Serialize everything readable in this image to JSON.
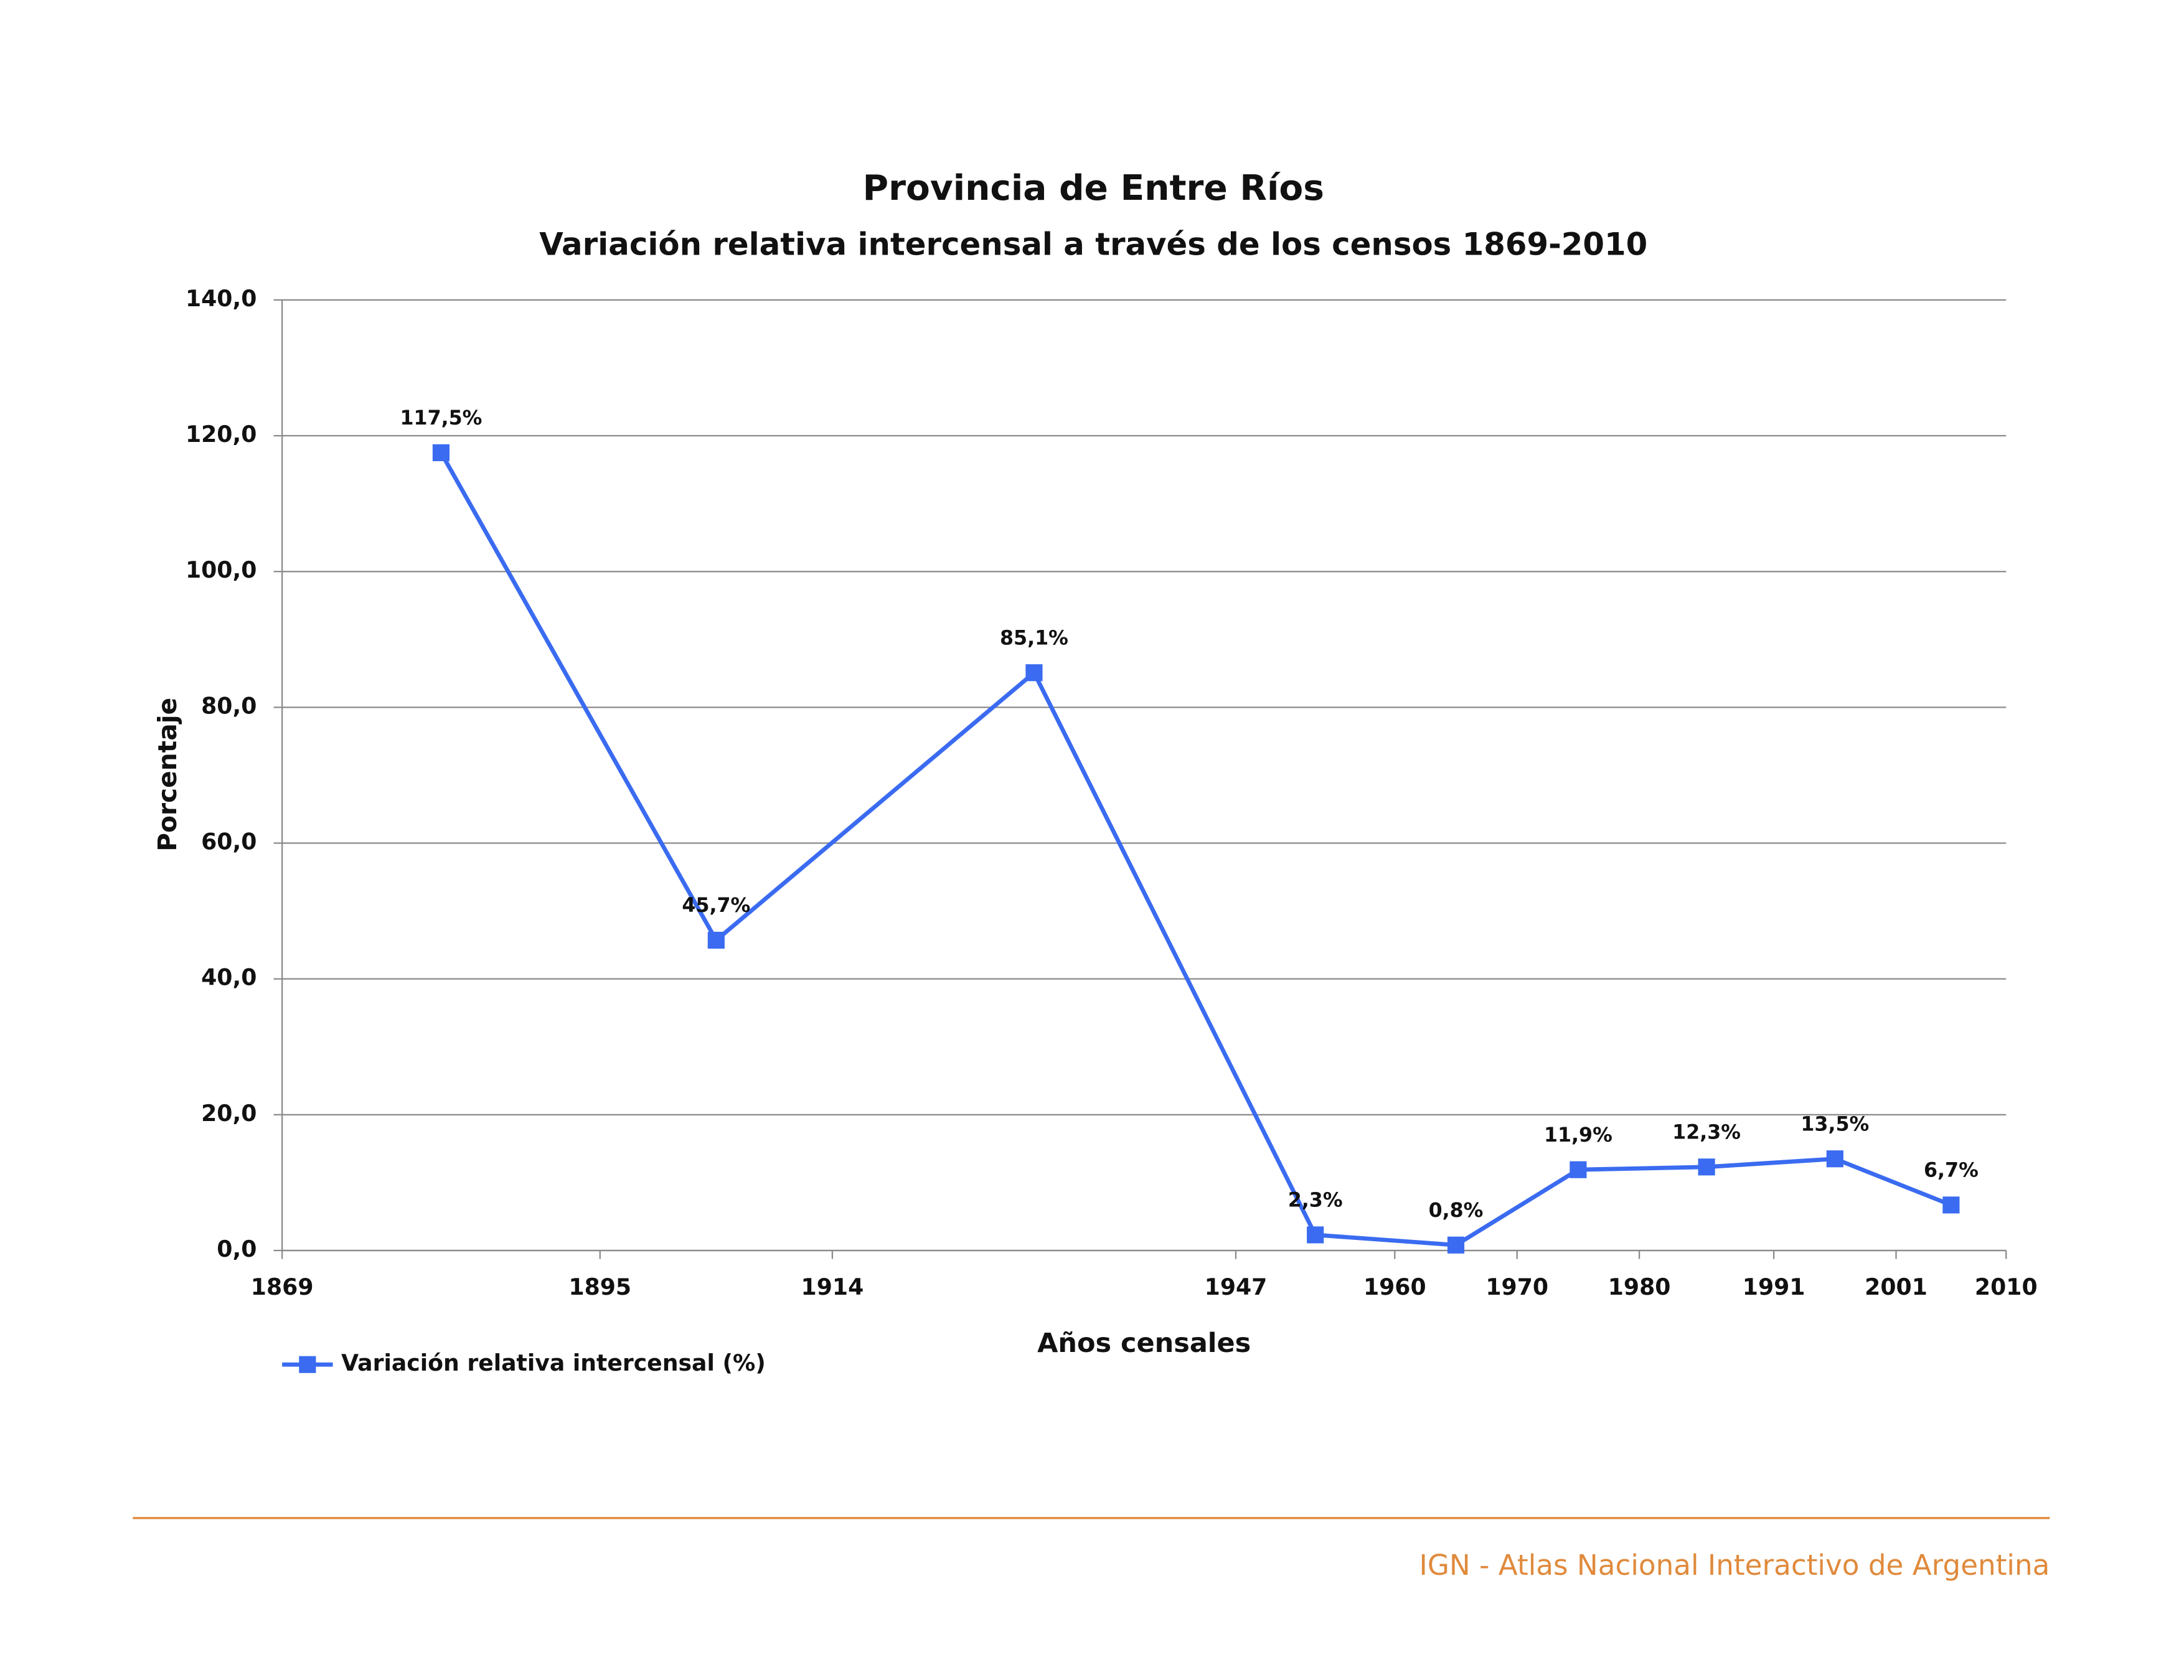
{
  "chart_data": {
    "type": "line",
    "title": "Provincia de Entre Ríos",
    "subtitle": "Variación relativa intercensal a través de los censos 1869-2010",
    "x_label": "Años censales",
    "y_label": "Porcentaje",
    "x": [
      1882,
      1904.5,
      1930.5,
      1953.5,
      1965,
      1975,
      1985.5,
      1996,
      2005.5
    ],
    "series": [
      {
        "name": "Variación relativa intercensal (%)",
        "color": "#3a6bf0",
        "values": [
          117.5,
          45.7,
          85.1,
          2.3,
          0.8,
          11.9,
          12.3,
          13.5,
          6.7
        ],
        "value_labels": [
          "117,5%",
          "45,7%",
          "85,1%",
          "2,3%",
          "0,8%",
          "11,9%",
          "12,3%",
          "13,5%",
          "6,7%"
        ]
      }
    ],
    "xlim": [
      1869,
      2010
    ],
    "xticks": [
      1869,
      1895,
      1914,
      1947,
      1960,
      1970,
      1980,
      1991,
      2001,
      2010
    ],
    "ylim": [
      0,
      140
    ],
    "yticks": [
      {
        "value": 0,
        "label": "0,0"
      },
      {
        "value": 20,
        "label": "20,0"
      },
      {
        "value": 40,
        "label": "40,0"
      },
      {
        "value": 60,
        "label": "60,0"
      },
      {
        "value": 80,
        "label": "80,0"
      },
      {
        "value": 100,
        "label": "100,0"
      },
      {
        "value": 120,
        "label": "120,0"
      },
      {
        "value": 140,
        "label": "140,0"
      }
    ],
    "grid": true
  },
  "footer": "IGN - Atlas Nacional Interactivo de Argentina"
}
